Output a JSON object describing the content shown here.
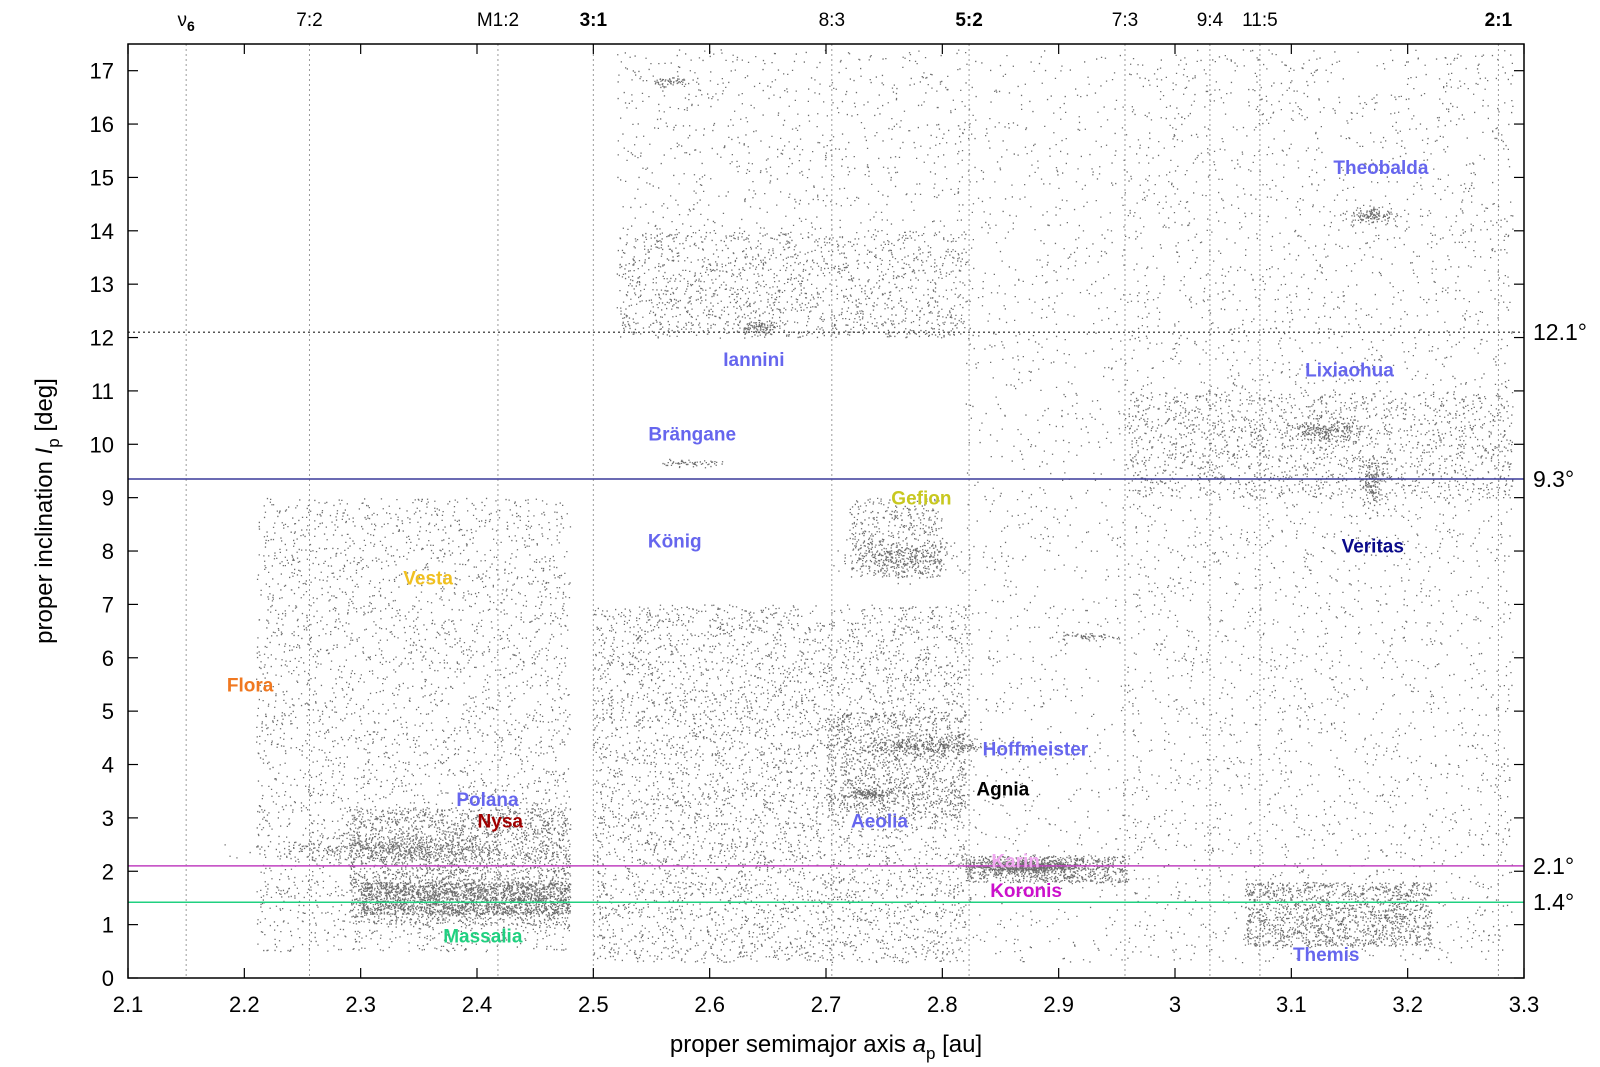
{
  "chart_data": {
    "type": "scatter",
    "xlabel": {
      "prefix": "proper semimajor axis ",
      "symbol": "a",
      "sub": "p",
      "suffix": " [au]"
    },
    "ylabel": {
      "prefix": "proper inclination ",
      "symbol": "I",
      "sub": "p",
      "suffix": " [deg]"
    },
    "xlim": [
      2.1,
      3.3
    ],
    "ylim": [
      0,
      17.5
    ],
    "x_ticks": [
      "2.1",
      "2.2",
      "2.3",
      "2.4",
      "2.5",
      "2.6",
      "2.7",
      "2.8",
      "2.9",
      "3",
      "3.1",
      "3.2",
      "3.3"
    ],
    "y_ticks": [
      "0",
      "1",
      "2",
      "3",
      "4",
      "5",
      "6",
      "7",
      "8",
      "9",
      "10",
      "11",
      "12",
      "13",
      "14",
      "15",
      "16",
      "17"
    ],
    "resonances": [
      {
        "label": "ν",
        "sub": "6",
        "a": 2.15,
        "bold": false
      },
      {
        "label": "7:2",
        "a": 2.256,
        "bold": false
      },
      {
        "label": "M1:2",
        "a": 2.418,
        "bold": false
      },
      {
        "label": "3:1",
        "a": 2.5,
        "bold": true
      },
      {
        "label": "8:3",
        "a": 2.705,
        "bold": false
      },
      {
        "label": "5:2",
        "a": 2.823,
        "bold": true
      },
      {
        "label": "7:3",
        "a": 2.957,
        "bold": false
      },
      {
        "label": "9:4",
        "a": 3.03,
        "bold": false
      },
      {
        "label": "11:5",
        "a": 3.073,
        "bold": false
      },
      {
        "label": "2:1",
        "a": 3.278,
        "bold": true
      }
    ],
    "horizontal_lines": [
      {
        "label": "12.1°",
        "value": 12.1,
        "color": "#555555",
        "style": "dotted"
      },
      {
        "label": "9.3°",
        "value": 9.35,
        "color": "#3a3a9a",
        "style": "solid"
      },
      {
        "label": "2.1°",
        "value": 2.1,
        "color": "#c040c0",
        "style": "solid"
      },
      {
        "label": "1.4°",
        "value": 1.42,
        "color": "#20d080",
        "style": "solid"
      }
    ],
    "families": [
      {
        "name": "Theobalda",
        "a": 3.177,
        "i": 15.2,
        "color": "#6666ee"
      },
      {
        "name": "Iannini",
        "a": 2.638,
        "i": 11.6,
        "color": "#6666ee"
      },
      {
        "name": "Lixiaohua",
        "a": 3.15,
        "i": 11.4,
        "color": "#6666ee"
      },
      {
        "name": "Brängane",
        "a": 2.585,
        "i": 10.2,
        "color": "#6666ee"
      },
      {
        "name": "Gefion",
        "a": 2.782,
        "i": 9.0,
        "color": "#c8c820"
      },
      {
        "name": "König",
        "a": 2.57,
        "i": 8.2,
        "color": "#6666ee"
      },
      {
        "name": "Veritas",
        "a": 3.17,
        "i": 8.1,
        "color": "#0a0a8a"
      },
      {
        "name": "Vesta",
        "a": 2.358,
        "i": 7.5,
        "color": "#f0c020"
      },
      {
        "name": "Flora",
        "a": 2.205,
        "i": 5.5,
        "color": "#f07820"
      },
      {
        "name": "Hoffmeister",
        "a": 2.88,
        "i": 4.3,
        "color": "#6666ee"
      },
      {
        "name": "Agnia",
        "a": 2.852,
        "i": 3.55,
        "color": "#000000"
      },
      {
        "name": "Polana",
        "a": 2.409,
        "i": 3.35,
        "color": "#6666ee"
      },
      {
        "name": "Nysa",
        "a": 2.42,
        "i": 2.95,
        "color": "#a00000"
      },
      {
        "name": "Aeolia",
        "a": 2.746,
        "i": 2.95,
        "color": "#6666ee"
      },
      {
        "name": "Karin",
        "a": 2.863,
        "i": 2.2,
        "color": "#f0a8f0"
      },
      {
        "name": "Koronis",
        "a": 2.872,
        "i": 1.65,
        "color": "#cc10cc"
      },
      {
        "name": "Massalia",
        "a": 2.405,
        "i": 0.8,
        "color": "#20d080"
      },
      {
        "name": "Themis",
        "a": 3.13,
        "i": 0.45,
        "color": "#6666ee"
      }
    ]
  }
}
